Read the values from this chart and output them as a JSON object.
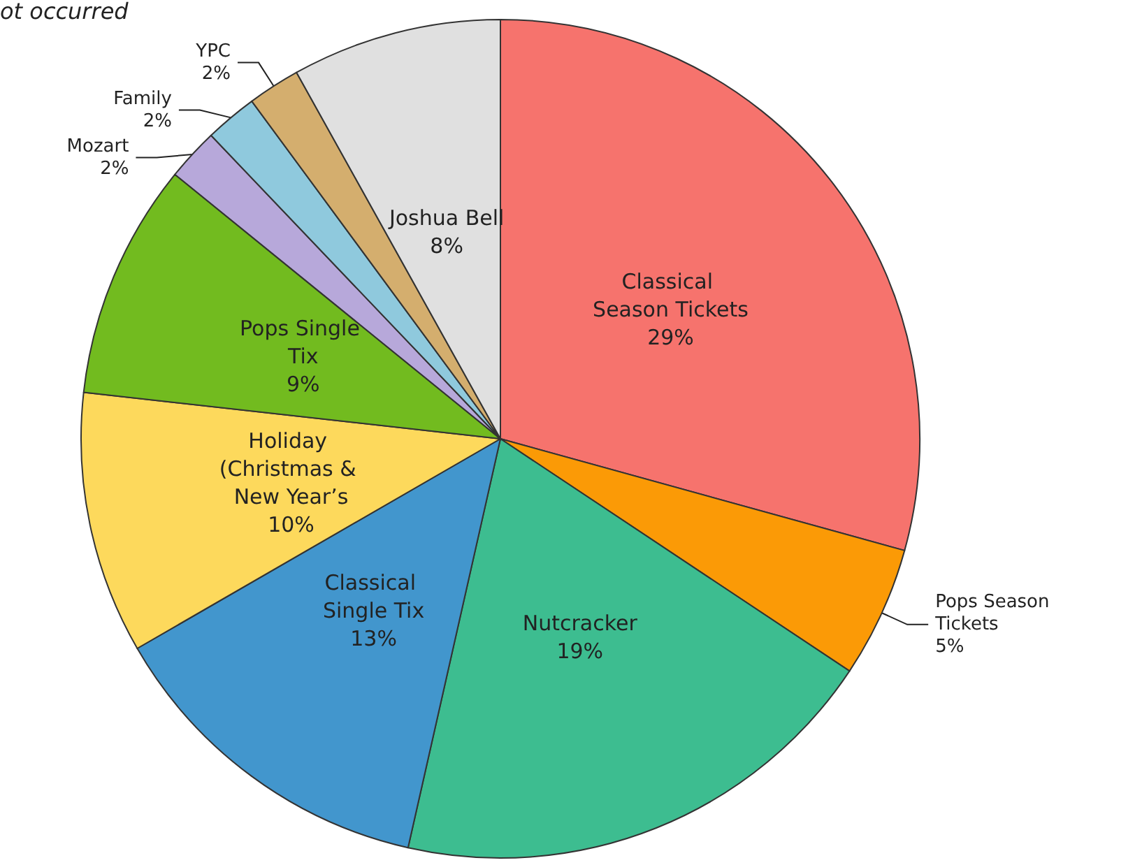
{
  "chart_data": {
    "type": "pie",
    "categories": [
      "Classical Season Tickets",
      "Pops Season Tickets",
      "Nutcracker",
      "Classical Single Tix",
      "Holiday (Christmas & New Year’s",
      "Pops Single Tix",
      "Mozart",
      "Family",
      "YPC",
      "Joshua Bell"
    ],
    "values": [
      29,
      5,
      19,
      13,
      10,
      9,
      2,
      2,
      2,
      8
    ],
    "colors": [
      "#f6736d",
      "#fb9a06",
      "#3dbd90",
      "#4296cd",
      "#fdd95c",
      "#72bb1f",
      "#b7a8da",
      "#8fc9dd",
      "#d4ae6e",
      "#e0e0e0"
    ],
    "value_labels": [
      "29%",
      "5%",
      "19%",
      "13%",
      "10%",
      "9%",
      "2%",
      "2%",
      "2%",
      "8%"
    ],
    "annotations": [
      "ot occurred"
    ]
  }
}
